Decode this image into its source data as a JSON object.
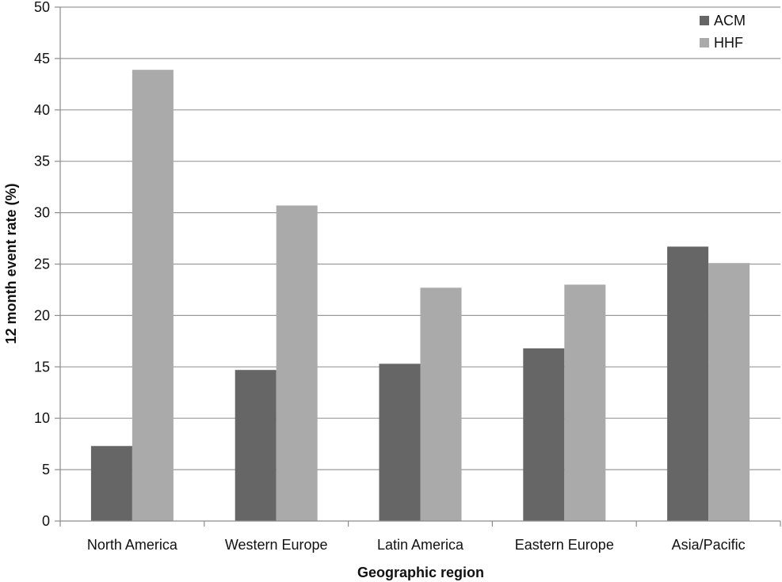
{
  "chart_data": {
    "type": "bar",
    "title": "",
    "xlabel": "Geographic region",
    "ylabel": "12 month event rate (%)",
    "ylim": [
      0,
      50
    ],
    "yticks": [
      "0",
      "5",
      "10",
      "15",
      "20",
      "25",
      "30",
      "35",
      "40",
      "45",
      "50"
    ],
    "grid": true,
    "legend_position": "top-right",
    "categories": [
      "North America",
      "Western Europe",
      "Latin America",
      "Eastern Europe",
      "Asia/Pacific"
    ],
    "series": [
      {
        "name": "ACM",
        "color": "#666666",
        "values": [
          7.3,
          14.7,
          15.3,
          16.8,
          26.7
        ]
      },
      {
        "name": "HHF",
        "color": "#aaaaaa",
        "values": [
          43.9,
          30.7,
          22.7,
          23.0,
          25.1
        ]
      }
    ]
  }
}
